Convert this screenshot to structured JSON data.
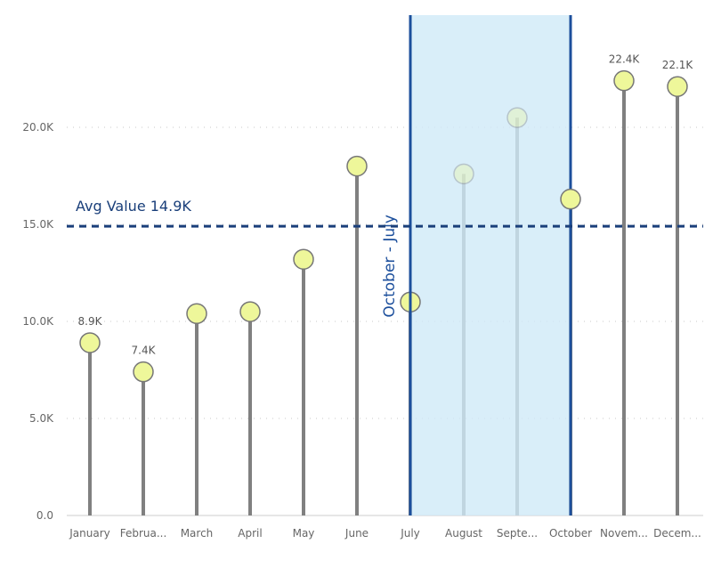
{
  "chart_data": {
    "type": "lollipop",
    "categories": [
      "January",
      "Februa...",
      "March",
      "April",
      "May",
      "June",
      "July",
      "August",
      "Septe...",
      "October",
      "Novem...",
      "Decem..."
    ],
    "values": [
      8.9,
      7.4,
      10.4,
      10.5,
      13.2,
      18.0,
      11.0,
      17.6,
      20.5,
      16.3,
      22.4,
      22.1
    ],
    "value_unit": "K",
    "data_labels": {
      "0": "8.9K",
      "1": "7.4K",
      "10": "22.4K",
      "11": "22.1K"
    },
    "y_ticks": [
      "0.0",
      "5.0K",
      "10.0K",
      "15.0K",
      "20.0K"
    ],
    "ylim": [
      0,
      25.7
    ],
    "grid": true,
    "average_line": {
      "value": 14.9,
      "label": "Avg Value 14.9K"
    },
    "band": {
      "from": "July",
      "to": "October",
      "label": "October - July"
    },
    "colors": {
      "marker_fill": "#eef79a",
      "marker_stroke": "#777777",
      "stem": "#808080",
      "band_fill": "#cfeaf8",
      "band_edge": "#1c4f9c",
      "avg_line": "#1a3f7a"
    }
  }
}
